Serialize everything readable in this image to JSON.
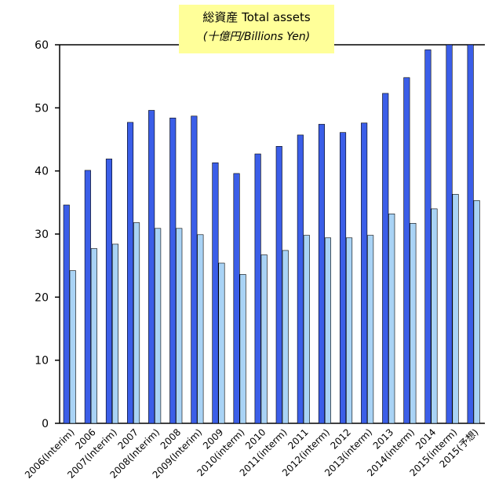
{
  "chart_data": {
    "type": "bar",
    "title": "総資産 Total assets",
    "subtitle": "(十億円/Billions Yen)",
    "xlabel": "",
    "ylabel": "",
    "ylim": [
      0,
      60
    ],
    "yticks": [
      0,
      10,
      20,
      30,
      40,
      50,
      60
    ],
    "grid": false,
    "legend": "none",
    "categories": [
      "2006(Interim)",
      "2006",
      "2007(Interim)",
      "2007",
      "2008(Interim)",
      "2008",
      "2009(Interim)",
      "2009",
      "2010(interm)",
      "2010",
      "2011(interm)",
      "2011",
      "2012(interm)",
      "2012",
      "2013(interm)",
      "2013",
      "2014(interm)",
      "2014",
      "2015(interm)",
      "2015(予想)"
    ],
    "series": [
      {
        "color": "#3b5ee8",
        "values": [
          34.6,
          40.1,
          41.9,
          47.7,
          49.6,
          48.4,
          48.7,
          41.3,
          39.6,
          42.7,
          43.9,
          45.7,
          47.4,
          46.1,
          47.6,
          52.3,
          54.8,
          59.2,
          60.0,
          60.0
        ]
      },
      {
        "color": "#a9d3f5",
        "values": [
          24.2,
          27.7,
          28.4,
          31.8,
          30.9,
          30.9,
          29.9,
          25.4,
          23.6,
          26.7,
          27.4,
          29.8,
          29.4,
          29.4,
          29.8,
          33.2,
          31.7,
          34.0,
          36.3,
          35.3
        ]
      }
    ]
  }
}
